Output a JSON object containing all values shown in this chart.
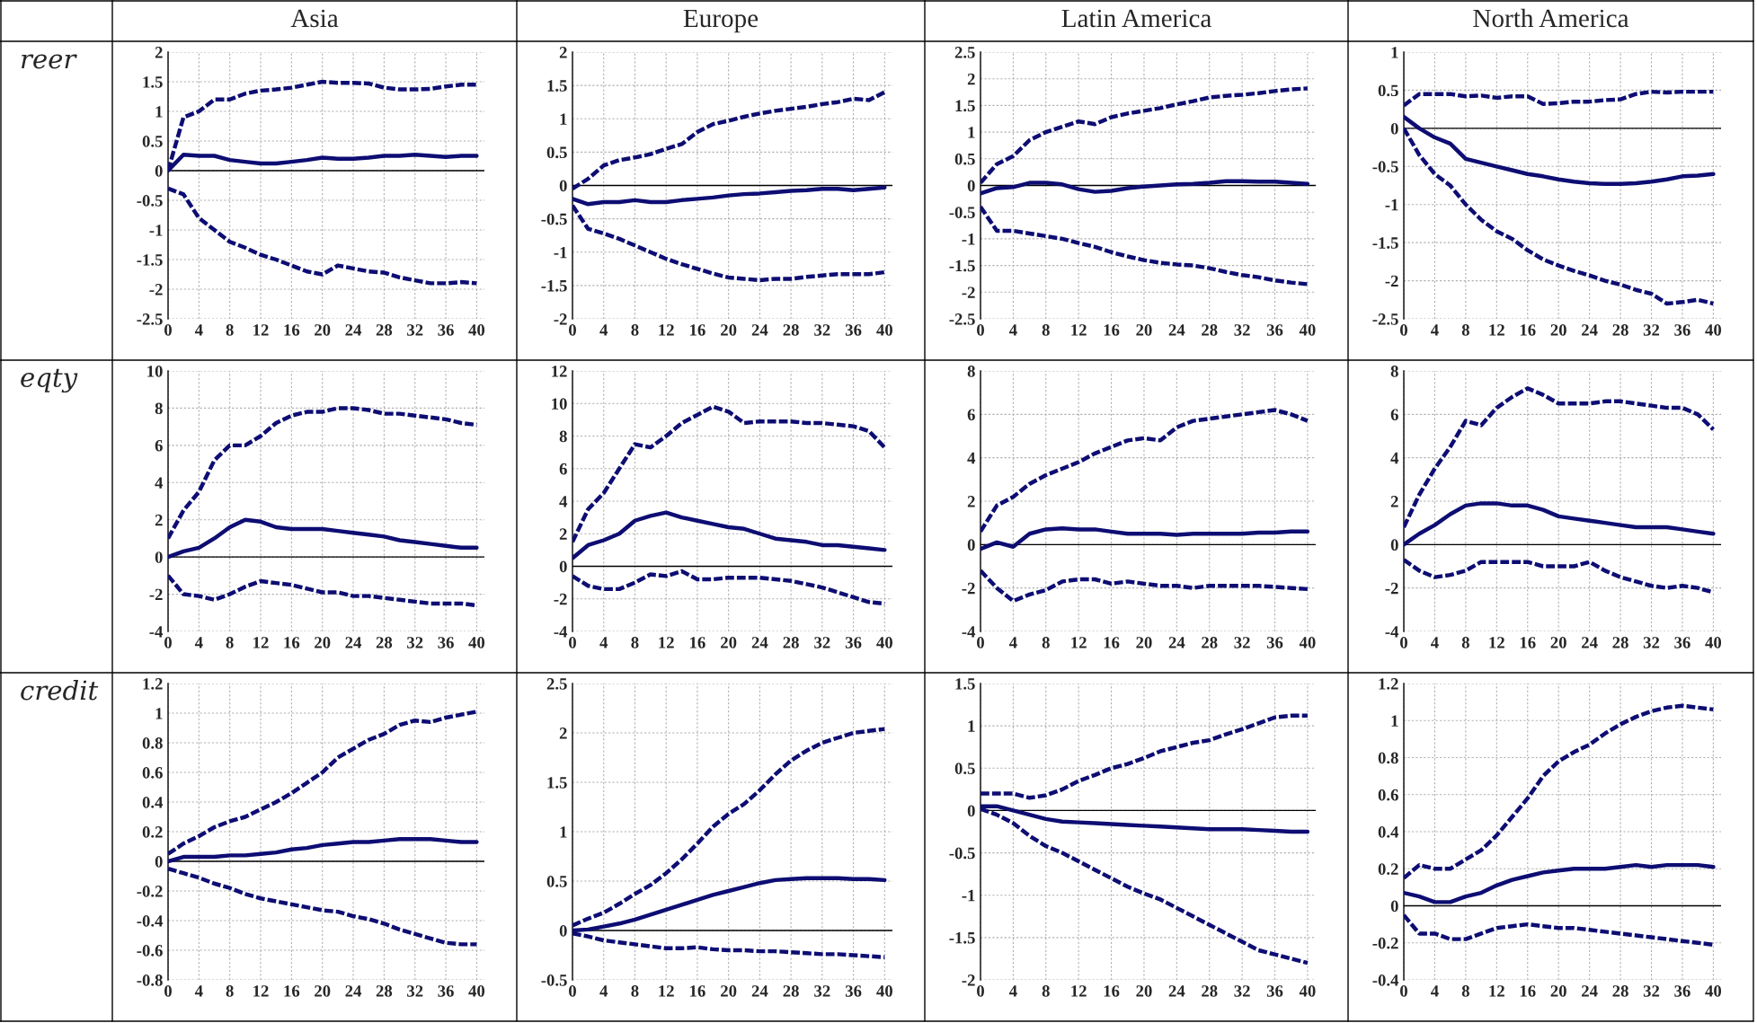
{
  "chart_data": [
    {
      "type": "line",
      "title": "Asia",
      "ylabel": "reer",
      "x": [
        0,
        2,
        4,
        6,
        8,
        10,
        12,
        14,
        16,
        18,
        20,
        22,
        24,
        26,
        28,
        30,
        32,
        34,
        36,
        38,
        40
      ],
      "xlim": [
        0,
        41
      ],
      "xticks": [
        0,
        4,
        8,
        12,
        16,
        20,
        24,
        28,
        32,
        36,
        40
      ],
      "ylim": [
        -2.5,
        2
      ],
      "yticks": [
        -2.5,
        -2,
        -1.5,
        -1,
        -0.5,
        0,
        0.5,
        1,
        1.5,
        2
      ],
      "grid": true,
      "ref_lines": [
        {
          "axis": "y",
          "value": 0,
          "color": "#000000"
        }
      ],
      "series": [
        {
          "color": "#0d0d73",
          "line_style": "dashed",
          "values": [
            0,
            0.9,
            1.0,
            1.2,
            1.2,
            1.3,
            1.35,
            1.37,
            1.4,
            1.45,
            1.5,
            1.48,
            1.48,
            1.47,
            1.4,
            1.37,
            1.37,
            1.38,
            1.42,
            1.45,
            1.45
          ]
        },
        {
          "color": "#0d0d73",
          "line_style": "solid",
          "values": [
            0,
            0.27,
            0.25,
            0.25,
            0.18,
            0.15,
            0.12,
            0.12,
            0.15,
            0.18,
            0.22,
            0.2,
            0.2,
            0.22,
            0.25,
            0.25,
            0.27,
            0.25,
            0.23,
            0.25,
            0.25
          ]
        },
        {
          "color": "#0d0d73",
          "line_style": "dashed",
          "values": [
            -0.3,
            -0.4,
            -0.8,
            -1.0,
            -1.2,
            -1.3,
            -1.42,
            -1.5,
            -1.6,
            -1.7,
            -1.75,
            -1.6,
            -1.65,
            -1.7,
            -1.72,
            -1.8,
            -1.85,
            -1.9,
            -1.9,
            -1.88,
            -1.9
          ]
        }
      ]
    },
    {
      "type": "line",
      "title": "Europe",
      "x": [
        0,
        2,
        4,
        6,
        8,
        10,
        12,
        14,
        16,
        18,
        20,
        22,
        24,
        26,
        28,
        30,
        32,
        34,
        36,
        38,
        40
      ],
      "xlim": [
        0,
        41
      ],
      "xticks": [
        0,
        4,
        8,
        12,
        16,
        20,
        24,
        28,
        32,
        36,
        40
      ],
      "ylim": [
        -2,
        2
      ],
      "yticks": [
        -2,
        -1.5,
        -1,
        -0.5,
        0,
        0.5,
        1,
        1.5,
        2
      ],
      "grid": true,
      "ref_lines": [
        {
          "axis": "y",
          "value": 0,
          "color": "#000000"
        }
      ],
      "series": [
        {
          "color": "#0d0d73",
          "line_style": "dashed",
          "values": [
            -0.05,
            0.1,
            0.3,
            0.38,
            0.42,
            0.47,
            0.55,
            0.62,
            0.8,
            0.92,
            0.97,
            1.03,
            1.08,
            1.12,
            1.15,
            1.18,
            1.22,
            1.25,
            1.3,
            1.28,
            1.4
          ]
        },
        {
          "color": "#0d0d73",
          "line_style": "solid",
          "values": [
            -0.2,
            -0.28,
            -0.25,
            -0.25,
            -0.22,
            -0.25,
            -0.25,
            -0.22,
            -0.2,
            -0.18,
            -0.15,
            -0.13,
            -0.12,
            -0.1,
            -0.08,
            -0.07,
            -0.05,
            -0.05,
            -0.07,
            -0.05,
            -0.03
          ]
        },
        {
          "color": "#0d0d73",
          "line_style": "dashed",
          "values": [
            -0.3,
            -0.65,
            -0.72,
            -0.8,
            -0.9,
            -1.0,
            -1.1,
            -1.18,
            -1.25,
            -1.32,
            -1.38,
            -1.4,
            -1.42,
            -1.4,
            -1.4,
            -1.37,
            -1.35,
            -1.33,
            -1.33,
            -1.33,
            -1.3
          ]
        }
      ]
    },
    {
      "type": "line",
      "title": "Latin America",
      "x": [
        0,
        2,
        4,
        6,
        8,
        10,
        12,
        14,
        16,
        18,
        20,
        22,
        24,
        26,
        28,
        30,
        32,
        34,
        36,
        38,
        40
      ],
      "xlim": [
        0,
        41
      ],
      "xticks": [
        0,
        4,
        8,
        12,
        16,
        20,
        24,
        28,
        32,
        36,
        40
      ],
      "ylim": [
        -2.5,
        2.5
      ],
      "yticks": [
        -2.5,
        -2,
        -1.5,
        -1,
        -0.5,
        0,
        0.5,
        1,
        1.5,
        2,
        2.5
      ],
      "grid": true,
      "ref_lines": [
        {
          "axis": "y",
          "value": 0,
          "color": "#000000"
        }
      ],
      "series": [
        {
          "color": "#0d0d73",
          "line_style": "dashed",
          "values": [
            0.05,
            0.4,
            0.55,
            0.85,
            1.0,
            1.1,
            1.2,
            1.15,
            1.28,
            1.35,
            1.4,
            1.45,
            1.52,
            1.58,
            1.65,
            1.68,
            1.7,
            1.73,
            1.77,
            1.8,
            1.82
          ]
        },
        {
          "color": "#0d0d73",
          "line_style": "solid",
          "values": [
            -0.15,
            -0.05,
            -0.03,
            0.05,
            0.05,
            0.02,
            -0.07,
            -0.12,
            -0.1,
            -0.05,
            -0.02,
            0,
            0.02,
            0.03,
            0.05,
            0.08,
            0.08,
            0.07,
            0.07,
            0.05,
            0.03
          ]
        },
        {
          "color": "#0d0d73",
          "line_style": "dashed",
          "values": [
            -0.4,
            -0.85,
            -0.85,
            -0.9,
            -0.95,
            -1.0,
            -1.08,
            -1.15,
            -1.25,
            -1.33,
            -1.4,
            -1.45,
            -1.48,
            -1.5,
            -1.55,
            -1.62,
            -1.68,
            -1.72,
            -1.78,
            -1.82,
            -1.85
          ]
        }
      ]
    },
    {
      "type": "line",
      "title": "North America",
      "x": [
        0,
        2,
        4,
        6,
        8,
        10,
        12,
        14,
        16,
        18,
        20,
        22,
        24,
        26,
        28,
        30,
        32,
        34,
        36,
        38,
        40
      ],
      "xlim": [
        0,
        41
      ],
      "xticks": [
        0,
        4,
        8,
        12,
        16,
        20,
        24,
        28,
        32,
        36,
        40
      ],
      "ylim": [
        -2.5,
        1
      ],
      "yticks": [
        -2.5,
        -2,
        -1.5,
        -1,
        -0.5,
        0,
        0.5,
        1
      ],
      "grid": true,
      "ref_lines": [
        {
          "axis": "y",
          "value": 0,
          "color": "#000000"
        }
      ],
      "series": [
        {
          "color": "#0d0d73",
          "line_style": "dashed",
          "values": [
            0.3,
            0.45,
            0.45,
            0.45,
            0.42,
            0.43,
            0.4,
            0.42,
            0.42,
            0.32,
            0.33,
            0.35,
            0.35,
            0.37,
            0.38,
            0.45,
            0.48,
            0.47,
            0.48,
            0.48,
            0.48
          ]
        },
        {
          "color": "#0d0d73",
          "line_style": "solid",
          "values": [
            0.15,
            0.0,
            -0.12,
            -0.2,
            -0.4,
            -0.45,
            -0.5,
            -0.55,
            -0.6,
            -0.63,
            -0.67,
            -0.7,
            -0.72,
            -0.73,
            -0.73,
            -0.72,
            -0.7,
            -0.67,
            -0.63,
            -0.62,
            -0.6
          ]
        },
        {
          "color": "#0d0d73",
          "line_style": "dashed",
          "values": [
            0.0,
            -0.35,
            -0.6,
            -0.75,
            -1.0,
            -1.2,
            -1.35,
            -1.45,
            -1.6,
            -1.72,
            -1.8,
            -1.87,
            -1.93,
            -2.0,
            -2.05,
            -2.12,
            -2.17,
            -2.3,
            -2.28,
            -2.25,
            -2.3
          ]
        }
      ]
    },
    {
      "type": "line",
      "ylabel": "eqty",
      "x": [
        0,
        2,
        4,
        6,
        8,
        10,
        12,
        14,
        16,
        18,
        20,
        22,
        24,
        26,
        28,
        30,
        32,
        34,
        36,
        38,
        40
      ],
      "xlim": [
        0,
        41
      ],
      "xticks": [
        0,
        4,
        8,
        12,
        16,
        20,
        24,
        28,
        32,
        36,
        40
      ],
      "ylim": [
        -4,
        10
      ],
      "yticks": [
        -4,
        -2,
        0,
        2,
        4,
        6,
        8,
        10
      ],
      "grid": true,
      "ref_lines": [
        {
          "axis": "y",
          "value": 0,
          "color": "#000000"
        }
      ],
      "series": [
        {
          "color": "#0d0d73",
          "line_style": "dashed",
          "values": [
            1.0,
            2.5,
            3.5,
            5.2,
            6.0,
            6.0,
            6.5,
            7.2,
            7.6,
            7.8,
            7.8,
            8.0,
            8.0,
            7.9,
            7.7,
            7.7,
            7.6,
            7.5,
            7.4,
            7.2,
            7.1
          ]
        },
        {
          "color": "#0d0d73",
          "line_style": "solid",
          "values": [
            0,
            0.3,
            0.5,
            1.0,
            1.6,
            2.0,
            1.9,
            1.6,
            1.5,
            1.5,
            1.5,
            1.4,
            1.3,
            1.2,
            1.1,
            0.9,
            0.8,
            0.7,
            0.6,
            0.5,
            0.5
          ]
        },
        {
          "color": "#0d0d73",
          "line_style": "dashed",
          "values": [
            -1.0,
            -2.0,
            -2.1,
            -2.3,
            -2.0,
            -1.6,
            -1.3,
            -1.4,
            -1.5,
            -1.7,
            -1.9,
            -1.9,
            -2.1,
            -2.1,
            -2.2,
            -2.3,
            -2.4,
            -2.5,
            -2.5,
            -2.5,
            -2.6
          ]
        }
      ]
    },
    {
      "type": "line",
      "x": [
        0,
        2,
        4,
        6,
        8,
        10,
        12,
        14,
        16,
        18,
        20,
        22,
        24,
        26,
        28,
        30,
        32,
        34,
        36,
        38,
        40
      ],
      "xlim": [
        0,
        41
      ],
      "xticks": [
        0,
        4,
        8,
        12,
        16,
        20,
        24,
        28,
        32,
        36,
        40
      ],
      "ylim": [
        -4,
        12
      ],
      "yticks": [
        -4,
        -2,
        0,
        2,
        4,
        6,
        8,
        10,
        12
      ],
      "grid": true,
      "ref_lines": [
        {
          "axis": "y",
          "value": 0,
          "color": "#000000"
        }
      ],
      "series": [
        {
          "color": "#0d0d73",
          "line_style": "dashed",
          "values": [
            1.5,
            3.5,
            4.5,
            6.0,
            7.5,
            7.3,
            8.0,
            8.8,
            9.3,
            9.8,
            9.5,
            8.8,
            8.9,
            8.9,
            8.9,
            8.8,
            8.8,
            8.7,
            8.6,
            8.3,
            7.3
          ]
        },
        {
          "color": "#0d0d73",
          "line_style": "solid",
          "values": [
            0.5,
            1.3,
            1.6,
            2.0,
            2.8,
            3.1,
            3.3,
            3.0,
            2.8,
            2.6,
            2.4,
            2.3,
            2.0,
            1.7,
            1.6,
            1.5,
            1.3,
            1.3,
            1.2,
            1.1,
            1.0
          ]
        },
        {
          "color": "#0d0d73",
          "line_style": "dashed",
          "values": [
            -0.6,
            -1.2,
            -1.4,
            -1.4,
            -1.0,
            -0.5,
            -0.6,
            -0.3,
            -0.8,
            -0.8,
            -0.7,
            -0.7,
            -0.7,
            -0.8,
            -0.9,
            -1.1,
            -1.3,
            -1.6,
            -1.9,
            -2.2,
            -2.3
          ]
        }
      ]
    },
    {
      "type": "line",
      "x": [
        0,
        2,
        4,
        6,
        8,
        10,
        12,
        14,
        16,
        18,
        20,
        22,
        24,
        26,
        28,
        30,
        32,
        34,
        36,
        38,
        40
      ],
      "xlim": [
        0,
        41
      ],
      "xticks": [
        0,
        4,
        8,
        12,
        16,
        20,
        24,
        28,
        32,
        36,
        40
      ],
      "ylim": [
        -4,
        8
      ],
      "yticks": [
        -4,
        -2,
        0,
        2,
        4,
        6,
        8
      ],
      "grid": true,
      "ref_lines": [
        {
          "axis": "y",
          "value": 0,
          "color": "#000000"
        }
      ],
      "series": [
        {
          "color": "#0d0d73",
          "line_style": "dashed",
          "values": [
            0.6,
            1.8,
            2.2,
            2.8,
            3.2,
            3.5,
            3.8,
            4.2,
            4.5,
            4.8,
            4.9,
            4.8,
            5.4,
            5.7,
            5.8,
            5.9,
            6.0,
            6.1,
            6.2,
            6.0,
            5.7
          ]
        },
        {
          "color": "#0d0d73",
          "line_style": "solid",
          "values": [
            -0.2,
            0.1,
            -0.1,
            0.5,
            0.7,
            0.75,
            0.7,
            0.7,
            0.6,
            0.5,
            0.5,
            0.5,
            0.45,
            0.5,
            0.5,
            0.5,
            0.5,
            0.55,
            0.55,
            0.6,
            0.6
          ]
        },
        {
          "color": "#0d0d73",
          "line_style": "dashed",
          "values": [
            -1.2,
            -2.0,
            -2.6,
            -2.3,
            -2.1,
            -1.7,
            -1.6,
            -1.6,
            -1.8,
            -1.7,
            -1.8,
            -1.9,
            -1.9,
            -2.0,
            -1.9,
            -1.9,
            -1.9,
            -1.9,
            -1.95,
            -2.0,
            -2.05
          ]
        }
      ]
    },
    {
      "type": "line",
      "x": [
        0,
        2,
        4,
        6,
        8,
        10,
        12,
        14,
        16,
        18,
        20,
        22,
        24,
        26,
        28,
        30,
        32,
        34,
        36,
        38,
        40
      ],
      "xlim": [
        0,
        41
      ],
      "xticks": [
        0,
        4,
        8,
        12,
        16,
        20,
        24,
        28,
        32,
        36,
        40
      ],
      "ylim": [
        -4,
        8
      ],
      "yticks": [
        -4,
        -2,
        0,
        2,
        4,
        6,
        8
      ],
      "grid": true,
      "ref_lines": [
        {
          "axis": "y",
          "value": 0,
          "color": "#000000"
        }
      ],
      "series": [
        {
          "color": "#0d0d73",
          "line_style": "dashed",
          "values": [
            0.8,
            2.3,
            3.5,
            4.5,
            5.7,
            5.5,
            6.3,
            6.8,
            7.2,
            6.9,
            6.5,
            6.5,
            6.5,
            6.6,
            6.6,
            6.5,
            6.4,
            6.3,
            6.3,
            6.0,
            5.3
          ]
        },
        {
          "color": "#0d0d73",
          "line_style": "solid",
          "values": [
            0,
            0.5,
            0.9,
            1.4,
            1.8,
            1.9,
            1.9,
            1.8,
            1.8,
            1.6,
            1.3,
            1.2,
            1.1,
            1.0,
            0.9,
            0.8,
            0.8,
            0.8,
            0.7,
            0.6,
            0.5
          ]
        },
        {
          "color": "#0d0d73",
          "line_style": "dashed",
          "values": [
            -0.7,
            -1.2,
            -1.5,
            -1.4,
            -1.2,
            -0.8,
            -0.8,
            -0.8,
            -0.8,
            -1.0,
            -1.0,
            -1.0,
            -0.8,
            -1.2,
            -1.5,
            -1.7,
            -1.9,
            -2.0,
            -1.9,
            -2.0,
            -2.2
          ]
        }
      ]
    },
    {
      "type": "line",
      "ylabel": "credit",
      "x": [
        0,
        2,
        4,
        6,
        8,
        10,
        12,
        14,
        16,
        18,
        20,
        22,
        24,
        26,
        28,
        30,
        32,
        34,
        36,
        38,
        40
      ],
      "xlim": [
        0,
        41
      ],
      "xticks": [
        0,
        4,
        8,
        12,
        16,
        20,
        24,
        28,
        32,
        36,
        40
      ],
      "ylim": [
        -0.8,
        1.2
      ],
      "yticks": [
        -0.8,
        -0.6,
        -0.4,
        -0.2,
        0,
        0.2,
        0.4,
        0.6,
        0.8,
        1,
        1.2
      ],
      "grid": true,
      "ref_lines": [
        {
          "axis": "y",
          "value": 0,
          "color": "#000000"
        }
      ],
      "series": [
        {
          "color": "#0d0d73",
          "line_style": "dashed",
          "values": [
            0.05,
            0.12,
            0.17,
            0.23,
            0.27,
            0.3,
            0.35,
            0.4,
            0.46,
            0.53,
            0.6,
            0.7,
            0.76,
            0.82,
            0.86,
            0.92,
            0.95,
            0.94,
            0.97,
            0.99,
            1.01
          ]
        },
        {
          "color": "#0d0d73",
          "line_style": "solid",
          "values": [
            0.0,
            0.03,
            0.03,
            0.03,
            0.04,
            0.04,
            0.05,
            0.06,
            0.08,
            0.09,
            0.11,
            0.12,
            0.13,
            0.13,
            0.14,
            0.15,
            0.15,
            0.15,
            0.14,
            0.13,
            0.13
          ]
        },
        {
          "color": "#0d0d73",
          "line_style": "dashed",
          "values": [
            -0.05,
            -0.08,
            -0.11,
            -0.15,
            -0.18,
            -0.22,
            -0.25,
            -0.27,
            -0.29,
            -0.31,
            -0.33,
            -0.34,
            -0.37,
            -0.39,
            -0.42,
            -0.46,
            -0.49,
            -0.52,
            -0.55,
            -0.56,
            -0.56
          ]
        }
      ]
    },
    {
      "type": "line",
      "x": [
        0,
        2,
        4,
        6,
        8,
        10,
        12,
        14,
        16,
        18,
        20,
        22,
        24,
        26,
        28,
        30,
        32,
        34,
        36,
        38,
        40
      ],
      "xlim": [
        0,
        41
      ],
      "xticks": [
        0,
        4,
        8,
        12,
        16,
        20,
        24,
        28,
        32,
        36,
        40
      ],
      "ylim": [
        -0.5,
        2.5
      ],
      "yticks": [
        -0.5,
        0,
        0.5,
        1,
        1.5,
        2,
        2.5
      ],
      "grid": true,
      "ref_lines": [
        {
          "axis": "y",
          "value": 0,
          "color": "#000000"
        }
      ],
      "series": [
        {
          "color": "#0d0d73",
          "line_style": "dashed",
          "values": [
            0.05,
            0.12,
            0.18,
            0.27,
            0.37,
            0.46,
            0.58,
            0.72,
            0.88,
            1.05,
            1.18,
            1.28,
            1.42,
            1.58,
            1.72,
            1.82,
            1.9,
            1.95,
            2.0,
            2.02,
            2.04
          ]
        },
        {
          "color": "#0d0d73",
          "line_style": "solid",
          "values": [
            0.0,
            0.01,
            0.04,
            0.07,
            0.11,
            0.16,
            0.21,
            0.26,
            0.31,
            0.36,
            0.4,
            0.44,
            0.48,
            0.51,
            0.52,
            0.53,
            0.53,
            0.53,
            0.52,
            0.52,
            0.51
          ]
        },
        {
          "color": "#0d0d73",
          "line_style": "dashed",
          "values": [
            -0.03,
            -0.06,
            -0.1,
            -0.12,
            -0.14,
            -0.16,
            -0.18,
            -0.18,
            -0.17,
            -0.19,
            -0.2,
            -0.2,
            -0.21,
            -0.21,
            -0.22,
            -0.23,
            -0.24,
            -0.24,
            -0.25,
            -0.26,
            -0.27
          ]
        }
      ]
    },
    {
      "type": "line",
      "x": [
        0,
        2,
        4,
        6,
        8,
        10,
        12,
        14,
        16,
        18,
        20,
        22,
        24,
        26,
        28,
        30,
        32,
        34,
        36,
        38,
        40
      ],
      "xlim": [
        0,
        41
      ],
      "xticks": [
        0,
        4,
        8,
        12,
        16,
        20,
        24,
        28,
        32,
        36,
        40
      ],
      "ylim": [
        -2,
        1.5
      ],
      "yticks": [
        -2,
        -1.5,
        -1,
        -0.5,
        0,
        0.5,
        1,
        1.5
      ],
      "grid": true,
      "ref_lines": [
        {
          "axis": "y",
          "value": 0,
          "color": "#000000"
        }
      ],
      "series": [
        {
          "color": "#0d0d73",
          "line_style": "dashed",
          "values": [
            0.2,
            0.2,
            0.2,
            0.15,
            0.18,
            0.25,
            0.35,
            0.42,
            0.5,
            0.55,
            0.62,
            0.7,
            0.75,
            0.8,
            0.83,
            0.9,
            0.96,
            1.03,
            1.1,
            1.12,
            1.12
          ]
        },
        {
          "color": "#0d0d73",
          "line_style": "solid",
          "values": [
            0.05,
            0.05,
            0.0,
            -0.05,
            -0.1,
            -0.13,
            -0.14,
            -0.15,
            -0.16,
            -0.17,
            -0.18,
            -0.19,
            -0.2,
            -0.21,
            -0.22,
            -0.22,
            -0.22,
            -0.23,
            -0.24,
            -0.25,
            -0.25
          ]
        },
        {
          "color": "#0d0d73",
          "line_style": "dashed",
          "values": [
            0.02,
            -0.05,
            -0.15,
            -0.3,
            -0.42,
            -0.5,
            -0.6,
            -0.7,
            -0.8,
            -0.9,
            -0.98,
            -1.05,
            -1.15,
            -1.25,
            -1.35,
            -1.45,
            -1.55,
            -1.65,
            -1.7,
            -1.75,
            -1.8
          ]
        }
      ]
    },
    {
      "type": "line",
      "x": [
        0,
        2,
        4,
        6,
        8,
        10,
        12,
        14,
        16,
        18,
        20,
        22,
        24,
        26,
        28,
        30,
        32,
        34,
        36,
        38,
        40
      ],
      "xlim": [
        0,
        41
      ],
      "xticks": [
        0,
        4,
        8,
        12,
        16,
        20,
        24,
        28,
        32,
        36,
        40
      ],
      "ylim": [
        -0.4,
        1.2
      ],
      "yticks": [
        -0.4,
        -0.2,
        0,
        0.2,
        0.4,
        0.6,
        0.8,
        1,
        1.2
      ],
      "grid": true,
      "ref_lines": [
        {
          "axis": "y",
          "value": 0,
          "color": "#000000"
        }
      ],
      "series": [
        {
          "color": "#0d0d73",
          "line_style": "dashed",
          "values": [
            0.15,
            0.22,
            0.2,
            0.2,
            0.25,
            0.3,
            0.38,
            0.48,
            0.58,
            0.7,
            0.78,
            0.83,
            0.87,
            0.93,
            0.98,
            1.02,
            1.05,
            1.07,
            1.08,
            1.07,
            1.06
          ]
        },
        {
          "color": "#0d0d73",
          "line_style": "solid",
          "values": [
            0.07,
            0.05,
            0.02,
            0.02,
            0.05,
            0.07,
            0.11,
            0.14,
            0.16,
            0.18,
            0.19,
            0.2,
            0.2,
            0.2,
            0.21,
            0.22,
            0.21,
            0.22,
            0.22,
            0.22,
            0.21
          ]
        },
        {
          "color": "#0d0d73",
          "line_style": "dashed",
          "values": [
            -0.05,
            -0.15,
            -0.15,
            -0.18,
            -0.18,
            -0.15,
            -0.12,
            -0.11,
            -0.1,
            -0.11,
            -0.12,
            -0.12,
            -0.13,
            -0.14,
            -0.15,
            -0.16,
            -0.17,
            -0.18,
            -0.19,
            -0.2,
            -0.21
          ]
        }
      ]
    }
  ]
}
